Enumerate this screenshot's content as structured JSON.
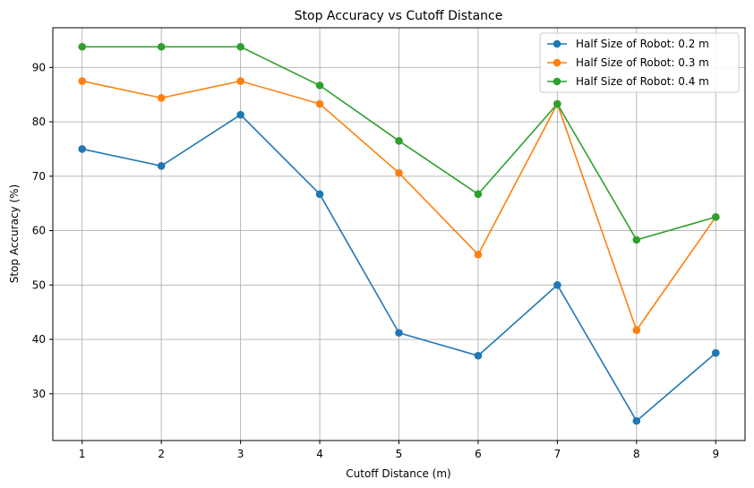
{
  "chart_data": {
    "type": "line",
    "title": "Stop Accuracy vs Cutoff Distance",
    "xlabel": "Cutoff Distance (m)",
    "ylabel": "Stop Accuracy (%)",
    "x": [
      1,
      2,
      3,
      4,
      5,
      6,
      7,
      8,
      9
    ],
    "xticks": [
      "1",
      "2",
      "3",
      "4",
      "5",
      "6",
      "7",
      "8",
      "9"
    ],
    "yticks": [
      "30",
      "40",
      "50",
      "60",
      "70",
      "80",
      "90"
    ],
    "xlim": [
      0.63,
      9.37
    ],
    "ylim": [
      21.4,
      97.3
    ],
    "grid": true,
    "legend_position": "top-right",
    "series": [
      {
        "name": "Half Size of Robot: 0.2 m",
        "color": "#1f77b4",
        "values": [
          75.0,
          71.9,
          81.3,
          66.7,
          41.2,
          37.0,
          50.0,
          25.0,
          37.5
        ]
      },
      {
        "name": "Half Size of Robot: 0.3 m",
        "color": "#ff7f0e",
        "values": [
          87.5,
          84.4,
          87.5,
          83.3,
          70.6,
          55.6,
          83.3,
          41.7,
          62.5
        ]
      },
      {
        "name": "Half Size of Robot: 0.4 m",
        "color": "#2ca02c",
        "values": [
          93.8,
          93.8,
          93.8,
          86.7,
          76.5,
          66.7,
          83.3,
          58.3,
          62.5
        ]
      }
    ]
  }
}
